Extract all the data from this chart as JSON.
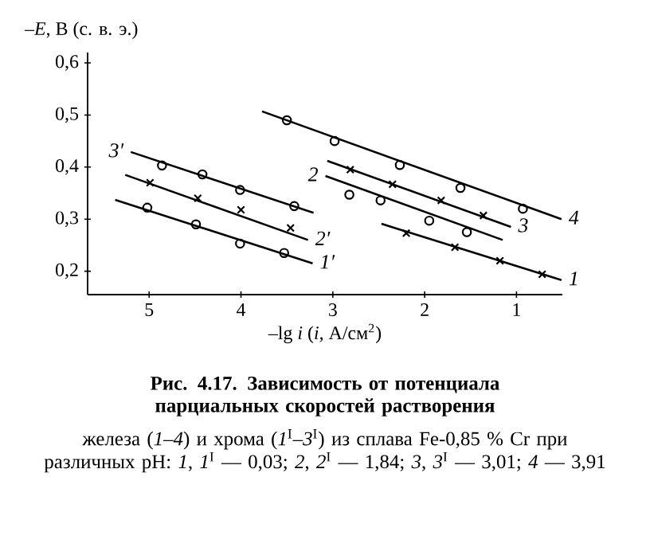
{
  "chart_data": {
    "type": "scatter",
    "title": "Рис. 4.17. Зависимость от потенциала парциальных скоростей растворения",
    "subtitle": "железа (*1*–*4*) и хрома (*1*$^{I}$–*3*$^{I}$) из сплава Fe-0,85 % Cr при различных pH: *1*, *1*$^{I}$ — 0,03; *2*, *2*$^{I}$ — 1,84; *3*, *3*$^{I}$ — 3,01; *4* — 3,91",
    "xlabel": "–lg *i* (*i*, А/см$^{2}$)",
    "ylabel": "–*E*, В (с. в. э.)",
    "xlim": [
      5.67,
      0.5
    ],
    "ylim": [
      0.155,
      0.62
    ],
    "xticks": [
      5,
      4,
      3,
      2,
      1
    ],
    "yticks": [
      {
        "value": 0.2,
        "label": "0,2"
      },
      {
        "value": 0.3,
        "label": "0,3"
      },
      {
        "value": 0.4,
        "label": "0,4"
      },
      {
        "value": 0.5,
        "label": "0,5"
      },
      {
        "value": 0.6,
        "label": "0,6"
      }
    ],
    "series": [
      {
        "type": "line",
        "name": "4",
        "color": "#000000",
        "x": [
          3.77,
          0.51
        ],
        "values": [
          0.507,
          0.3
        ]
      },
      {
        "marker": "circle",
        "color": "#000000",
        "x": [
          3.5,
          2.98,
          2.27,
          1.61,
          0.93
        ],
        "values": [
          0.49,
          0.45,
          0.404,
          0.36,
          0.32
        ]
      },
      {
        "type": "line",
        "name": "3",
        "color": "#000000",
        "x": [
          3.06,
          1.06
        ],
        "values": [
          0.412,
          0.285
        ]
      },
      {
        "marker": "cross",
        "color": "#000000",
        "x": [
          2.81,
          2.35,
          1.82,
          1.36
        ],
        "values": [
          0.395,
          0.367,
          0.336,
          0.307
        ]
      },
      {
        "type": "line",
        "name": "2",
        "color": "#000000",
        "x": [
          1.15,
          3.08
        ],
        "values": [
          0.26,
          0.383
        ]
      },
      {
        "marker": "circle",
        "color": "#000000",
        "x": [
          2.82,
          2.48,
          1.95,
          1.54
        ],
        "values": [
          0.347,
          0.336,
          0.297,
          0.275
        ]
      },
      {
        "type": "line",
        "name": "1",
        "color": "#000000",
        "x": [
          2.47,
          0.51
        ],
        "values": [
          0.291,
          0.183
        ]
      },
      {
        "marker": "cross",
        "color": "#000000",
        "x": [
          2.2,
          1.67,
          1.18,
          0.72
        ],
        "values": [
          0.273,
          0.246,
          0.22,
          0.194
        ]
      },
      {
        "type": "line",
        "name": "3′",
        "color": "#000000",
        "x": [
          3.21,
          5.2
        ],
        "values": [
          0.312,
          0.429
        ]
      },
      {
        "marker": "circle",
        "color": "#000000",
        "x": [
          4.86,
          4.42,
          4.01,
          3.42
        ],
        "values": [
          0.403,
          0.386,
          0.356,
          0.325
        ]
      },
      {
        "type": "line",
        "name": "2′",
        "color": "#000000",
        "x": [
          5.26,
          3.27
        ],
        "values": [
          0.385,
          0.26
        ]
      },
      {
        "marker": "cross",
        "color": "#000000",
        "x": [
          4.99,
          4.47,
          4.0,
          3.46
        ],
        "values": [
          0.37,
          0.34,
          0.318,
          0.283
        ]
      },
      {
        "type": "line",
        "name": "1′",
        "color": "#000000",
        "x": [
          5.37,
          3.22
        ],
        "values": [
          0.337,
          0.215
        ]
      },
      {
        "marker": "circle",
        "color": "#000000",
        "x": [
          5.02,
          4.49,
          4.01,
          3.53
        ],
        "values": [
          0.322,
          0.29,
          0.253,
          0.235
        ]
      }
    ]
  }
}
